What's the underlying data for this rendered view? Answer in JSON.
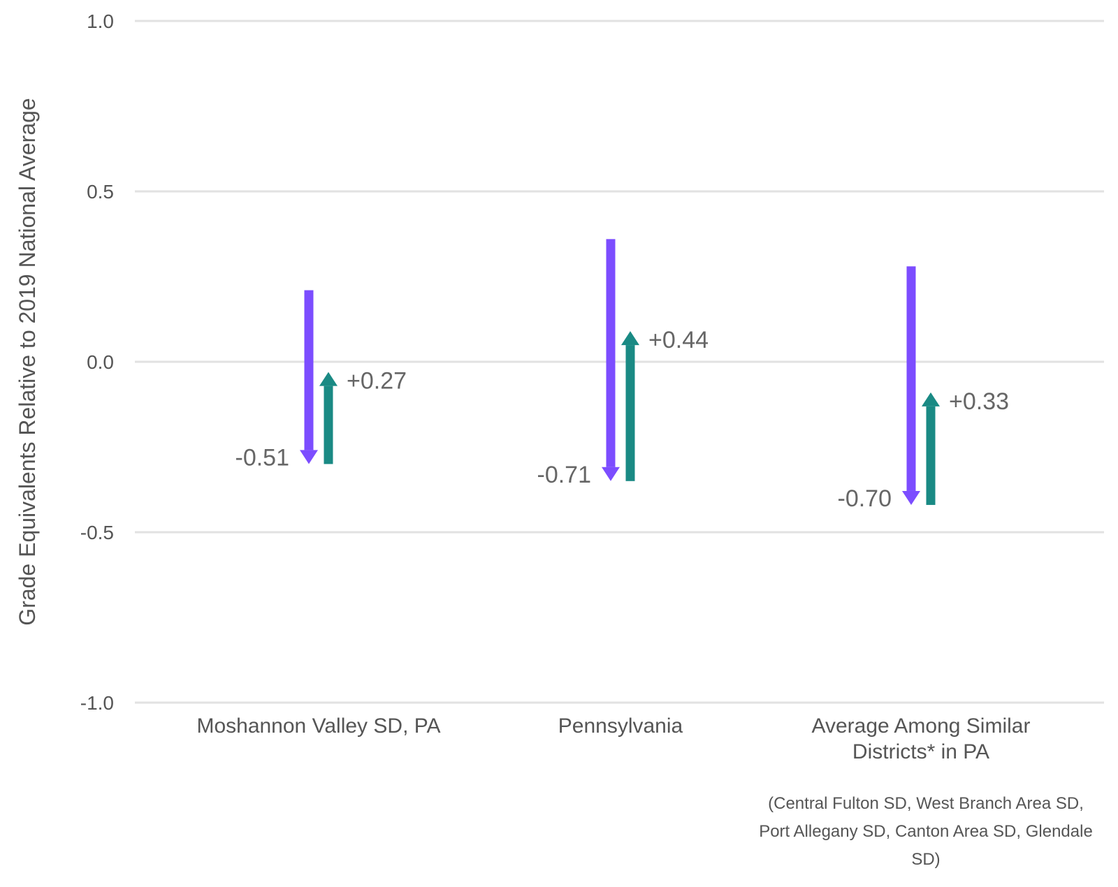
{
  "chart_data": {
    "type": "bar",
    "ylabel": "Grade Equivalents Relative to 2019 National Average",
    "ylim": [
      -1.0,
      1.0
    ],
    "yticks": [
      1.0,
      0.5,
      0.0,
      -0.5,
      -1.0
    ],
    "ytick_labels": [
      "1.0",
      "0.5",
      "0.0",
      "-0.5",
      "-1.0"
    ],
    "grid": true,
    "categories": [
      {
        "lines": [
          "Moshannon Valley SD, PA"
        ]
      },
      {
        "lines": [
          "Pennsylvania"
        ]
      },
      {
        "lines": [
          "Average Among Similar",
          "Districts* in PA"
        ]
      }
    ],
    "footnote_lines": [
      "(Central Fulton SD, West Branch Area SD,",
      "Port Allegany SD, Canton Area SD, Glendale",
      "SD)"
    ],
    "series": [
      {
        "color": "#7c4dff",
        "direction": "down",
        "start": [
          0.21,
          0.36,
          0.28
        ],
        "end": [
          -0.3,
          -0.35,
          -0.42
        ],
        "labels": [
          "-0.51",
          "-0.71",
          "-0.70"
        ]
      },
      {
        "color": "#1a8a84",
        "direction": "up",
        "start": [
          -0.3,
          -0.35,
          -0.42
        ],
        "end": [
          -0.03,
          0.09,
          -0.09
        ],
        "labels": [
          "+0.27",
          "+0.44",
          "+0.33"
        ]
      }
    ]
  }
}
